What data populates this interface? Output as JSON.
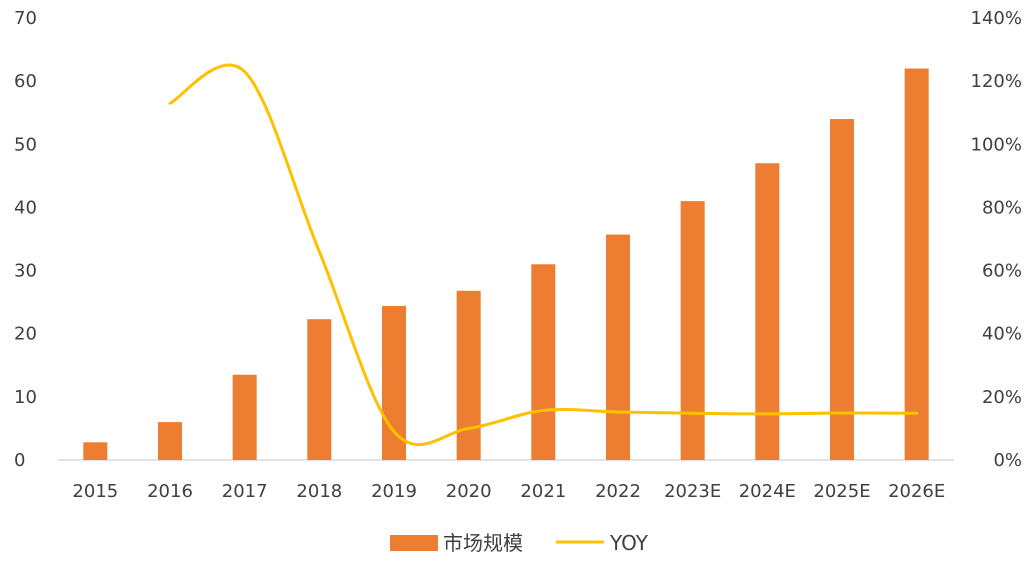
{
  "chart_data": {
    "type": "bar",
    "categories": [
      "2015",
      "2016",
      "2017",
      "2018",
      "2019",
      "2020",
      "2021",
      "2022",
      "2023E",
      "2024E",
      "2025E",
      "2026E"
    ],
    "series": [
      {
        "name": "市场规模",
        "kind": "bar",
        "axis": "left",
        "color": "#ed7d31",
        "values": [
          2.8,
          6.0,
          13.5,
          22.3,
          24.4,
          26.8,
          31.0,
          35.7,
          41.0,
          47.0,
          54.0,
          62.0
        ]
      },
      {
        "name": "YOY",
        "kind": "line",
        "axis": "right",
        "color": "#ffc000",
        "values": [
          null,
          1.13,
          1.23,
          0.66,
          0.09,
          0.1,
          0.157,
          0.152,
          0.148,
          0.146,
          0.149,
          0.148
        ]
      }
    ],
    "y_left": {
      "range": [
        0,
        70
      ],
      "ticks": [
        "0",
        "10",
        "20",
        "30",
        "40",
        "50",
        "60",
        "70"
      ]
    },
    "y_right": {
      "range": [
        0,
        1.4
      ],
      "ticks": [
        "0%",
        "20%",
        "40%",
        "60%",
        "80%",
        "100%",
        "120%",
        "140%"
      ]
    },
    "grid": false,
    "legend_position": "bottom"
  }
}
